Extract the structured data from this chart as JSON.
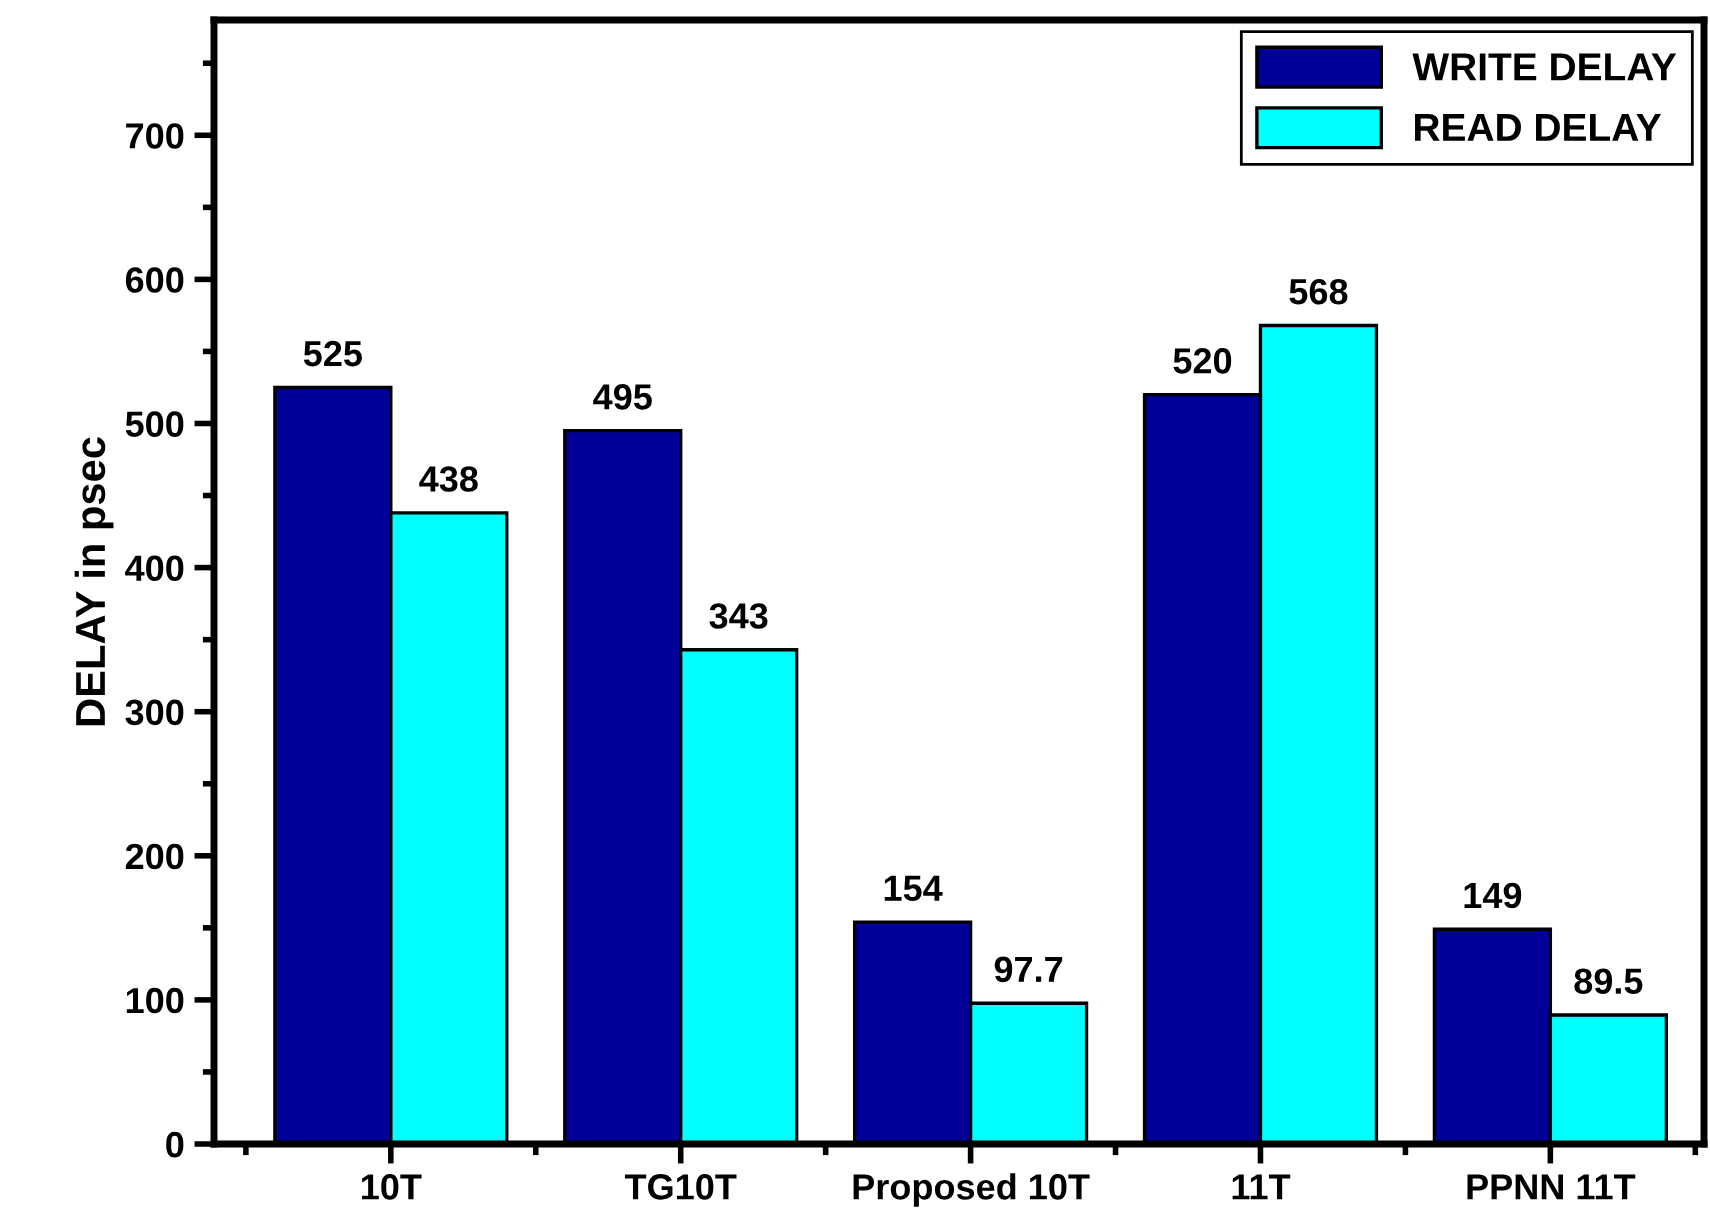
{
  "chart_data": {
    "type": "bar",
    "ylabel": "DELAY in psec",
    "categories": [
      "10T",
      "TG10T",
      "Proposed 10T",
      "11T",
      "PPNN 11T"
    ],
    "series": [
      {
        "name": "WRITE DELAY",
        "color": "#000099",
        "values": [
          525,
          495,
          154,
          520,
          149
        ]
      },
      {
        "name": "READ DELAY",
        "color": "#00ffff",
        "values": [
          438,
          343,
          97.7,
          568,
          89.5
        ]
      }
    ],
    "ylim": [
      0,
      780
    ],
    "yticks": [
      0,
      100,
      200,
      300,
      400,
      500,
      600,
      700
    ],
    "data_labels": true,
    "legend": "top right",
    "grid": false
  }
}
